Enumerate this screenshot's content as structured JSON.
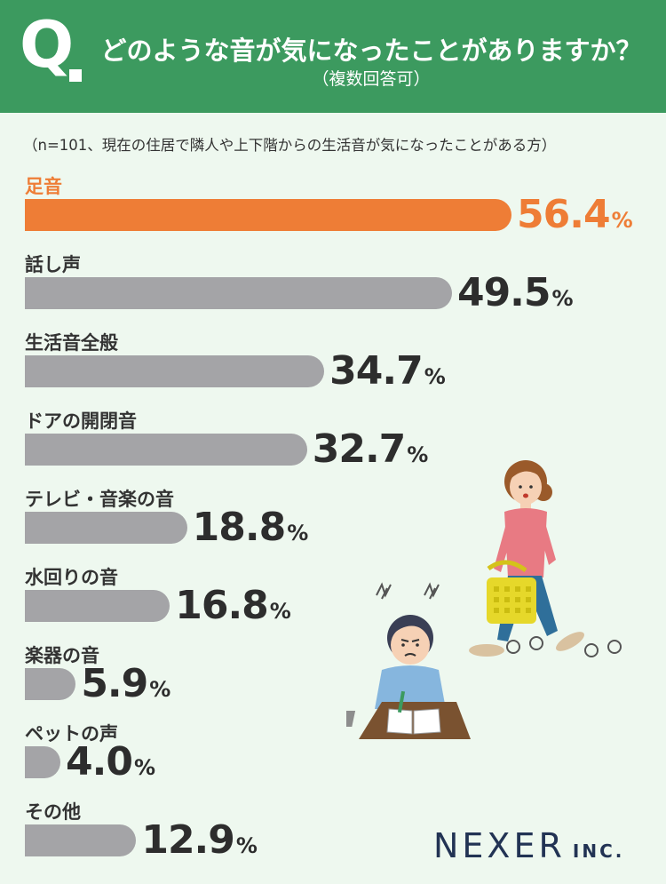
{
  "header": {
    "q_mark": "Q",
    "title": "どのような音が気になったことがありますか？",
    "subtitle": "（複数回答可）"
  },
  "note": "（n=101、現在の住居で隣人や上下階からの生活音が気になったことがある方）",
  "chart_data": {
    "type": "bar",
    "orientation": "horizontal",
    "unit": "%",
    "categories": [
      "足音",
      "話し声",
      "生活音全般",
      "ドアの開閉音",
      "テレビ・音楽の音",
      "水回りの音",
      "楽器の音",
      "ペットの声",
      "その他"
    ],
    "values": [
      56.4,
      49.5,
      34.7,
      32.7,
      18.8,
      16.8,
      5.9,
      4.0,
      12.9
    ],
    "value_labels": [
      "56.4",
      "49.5",
      "34.7",
      "32.7",
      "18.8",
      "16.8",
      "5.9",
      "4.0",
      "12.9"
    ],
    "highlight_index": 0,
    "colors": {
      "highlight": "#ee7d36",
      "default": "#a4a4a7"
    },
    "grid": false
  },
  "colors": {
    "header_bg": "#3c9a5f",
    "page_bg": "#eef8ef"
  },
  "logo": {
    "main": "NEXER",
    "suffix": "INC."
  }
}
